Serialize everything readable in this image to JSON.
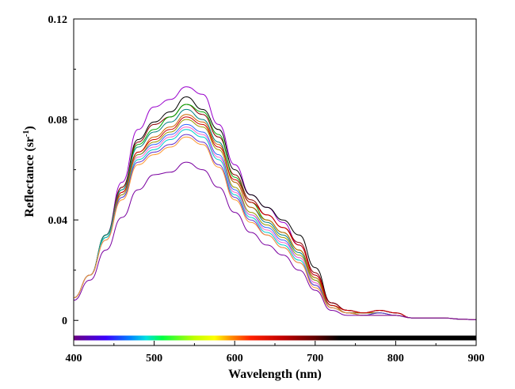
{
  "chart_data": {
    "type": "line",
    "xlabel": "Wavelength (nm)",
    "ylabel_main": "Reflectance (sr",
    "ylabel_sup": "-1",
    "ylabel_close": ")",
    "xlim": [
      400,
      900
    ],
    "ylim": [
      -0.01,
      0.12
    ],
    "xticks": [
      400,
      500,
      600,
      700,
      800,
      900
    ],
    "xtick_labels": [
      "400",
      "500",
      "600",
      "700",
      "800",
      "900"
    ],
    "yticks": [
      0,
      0.04,
      0.08,
      0.12
    ],
    "ytick_labels": [
      "0",
      "0.04",
      "0.08",
      "0.12"
    ],
    "grid": false,
    "spectrum_bar": {
      "y": -0.007,
      "x_start": 400,
      "x_end": 900,
      "color_stops": [
        {
          "x": 400,
          "color": "#6a0080"
        },
        {
          "x": 440,
          "color": "#3a00ff"
        },
        {
          "x": 470,
          "color": "#0080ff"
        },
        {
          "x": 490,
          "color": "#00e0e0"
        },
        {
          "x": 510,
          "color": "#00ff40"
        },
        {
          "x": 550,
          "color": "#c0ff00"
        },
        {
          "x": 575,
          "color": "#ffff00"
        },
        {
          "x": 595,
          "color": "#ff9000"
        },
        {
          "x": 620,
          "color": "#ff2000"
        },
        {
          "x": 660,
          "color": "#c00000"
        },
        {
          "x": 700,
          "color": "#600000"
        },
        {
          "x": 730,
          "color": "#000000"
        },
        {
          "x": 900,
          "color": "#000000"
        }
      ]
    },
    "x": [
      400,
      420,
      440,
      460,
      480,
      500,
      520,
      540,
      560,
      580,
      600,
      620,
      640,
      660,
      680,
      700,
      720,
      740,
      760,
      780,
      800,
      820,
      840,
      860,
      880,
      900
    ],
    "series": [
      {
        "color": "#9900cc",
        "values": [
          0.009,
          0.018,
          0.034,
          0.055,
          0.076,
          0.085,
          0.088,
          0.093,
          0.09,
          0.078,
          0.062,
          0.05,
          0.045,
          0.039,
          0.03,
          0.018,
          0.007,
          0.004,
          0.003,
          0.004,
          0.003,
          0.001,
          0.001,
          0.001,
          0.0005,
          0.0003
        ]
      },
      {
        "color": "#000000",
        "values": [
          0.009,
          0.018,
          0.034,
          0.053,
          0.072,
          0.079,
          0.083,
          0.089,
          0.084,
          0.076,
          0.06,
          0.05,
          0.045,
          0.04,
          0.034,
          0.021,
          0.007,
          0.004,
          0.003,
          0.004,
          0.003,
          0.001,
          0.001,
          0.001,
          0.0005,
          0.0003
        ]
      },
      {
        "color": "#8b0000",
        "values": [
          0.009,
          0.018,
          0.034,
          0.053,
          0.071,
          0.078,
          0.081,
          0.086,
          0.082,
          0.073,
          0.058,
          0.048,
          0.042,
          0.037,
          0.031,
          0.019,
          0.007,
          0.004,
          0.003,
          0.004,
          0.003,
          0.001,
          0.001,
          0.001,
          0.0005,
          0.0003
        ]
      },
      {
        "color": "#00aa00",
        "values": [
          0.009,
          0.018,
          0.034,
          0.052,
          0.07,
          0.076,
          0.081,
          0.086,
          0.083,
          0.074,
          0.057,
          0.047,
          0.04,
          0.035,
          0.028,
          0.017,
          0.006,
          0.003,
          0.003,
          0.003,
          0.002,
          0.001,
          0.001,
          0.001,
          0.0005,
          0.0003
        ]
      },
      {
        "color": "#008080",
        "values": [
          0.009,
          0.018,
          0.034,
          0.052,
          0.069,
          0.075,
          0.079,
          0.084,
          0.08,
          0.071,
          0.055,
          0.045,
          0.039,
          0.034,
          0.027,
          0.016,
          0.006,
          0.003,
          0.003,
          0.003,
          0.002,
          0.001,
          0.001,
          0.001,
          0.0005,
          0.0003
        ]
      },
      {
        "color": "#cc6600",
        "values": [
          0.009,
          0.018,
          0.033,
          0.051,
          0.067,
          0.073,
          0.077,
          0.082,
          0.079,
          0.07,
          0.055,
          0.045,
          0.04,
          0.035,
          0.028,
          0.017,
          0.006,
          0.003,
          0.003,
          0.003,
          0.002,
          0.001,
          0.001,
          0.001,
          0.0005,
          0.0003
        ]
      },
      {
        "color": "#cc0000",
        "values": [
          0.009,
          0.018,
          0.033,
          0.051,
          0.067,
          0.072,
          0.076,
          0.081,
          0.078,
          0.069,
          0.056,
          0.047,
          0.042,
          0.037,
          0.03,
          0.018,
          0.006,
          0.004,
          0.003,
          0.004,
          0.003,
          0.001,
          0.001,
          0.001,
          0.0005,
          0.0003
        ]
      },
      {
        "color": "#3366ff",
        "values": [
          0.009,
          0.018,
          0.033,
          0.05,
          0.066,
          0.07,
          0.074,
          0.078,
          0.075,
          0.066,
          0.052,
          0.042,
          0.037,
          0.032,
          0.025,
          0.015,
          0.005,
          0.003,
          0.002,
          0.003,
          0.002,
          0.001,
          0.001,
          0.001,
          0.0005,
          0.0003
        ]
      },
      {
        "color": "#ff66cc",
        "values": [
          0.009,
          0.018,
          0.033,
          0.05,
          0.065,
          0.069,
          0.073,
          0.077,
          0.074,
          0.065,
          0.051,
          0.042,
          0.036,
          0.031,
          0.025,
          0.015,
          0.005,
          0.003,
          0.002,
          0.003,
          0.002,
          0.001,
          0.001,
          0.001,
          0.0005,
          0.0003
        ]
      },
      {
        "color": "#999900",
        "values": [
          0.009,
          0.018,
          0.033,
          0.05,
          0.066,
          0.071,
          0.075,
          0.08,
          0.077,
          0.068,
          0.053,
          0.043,
          0.038,
          0.033,
          0.026,
          0.016,
          0.005,
          0.003,
          0.002,
          0.003,
          0.002,
          0.001,
          0.001,
          0.001,
          0.0005,
          0.0003
        ]
      },
      {
        "color": "#00cccc",
        "values": [
          0.009,
          0.018,
          0.033,
          0.049,
          0.064,
          0.068,
          0.072,
          0.076,
          0.073,
          0.064,
          0.05,
          0.041,
          0.035,
          0.03,
          0.024,
          0.014,
          0.005,
          0.003,
          0.002,
          0.003,
          0.002,
          0.001,
          0.001,
          0.001,
          0.0005,
          0.0003
        ]
      },
      {
        "color": "#6633cc",
        "values": [
          0.009,
          0.018,
          0.032,
          0.049,
          0.063,
          0.067,
          0.07,
          0.074,
          0.071,
          0.062,
          0.049,
          0.04,
          0.034,
          0.029,
          0.023,
          0.014,
          0.005,
          0.003,
          0.002,
          0.003,
          0.002,
          0.001,
          0.001,
          0.001,
          0.0005,
          0.0003
        ]
      },
      {
        "color": "#ff9933",
        "values": [
          0.009,
          0.018,
          0.032,
          0.048,
          0.062,
          0.066,
          0.069,
          0.073,
          0.07,
          0.061,
          0.048,
          0.039,
          0.034,
          0.029,
          0.023,
          0.013,
          0.005,
          0.003,
          0.002,
          0.002,
          0.002,
          0.001,
          0.001,
          0.001,
          0.0005,
          0.0003
        ]
      },
      {
        "color": "#7a00a0",
        "values": [
          0.008,
          0.016,
          0.028,
          0.041,
          0.052,
          0.058,
          0.059,
          0.063,
          0.06,
          0.053,
          0.043,
          0.035,
          0.03,
          0.026,
          0.02,
          0.012,
          0.004,
          0.002,
          0.002,
          0.002,
          0.002,
          0.001,
          0.001,
          0.001,
          0.0005,
          0.0003
        ]
      }
    ]
  }
}
